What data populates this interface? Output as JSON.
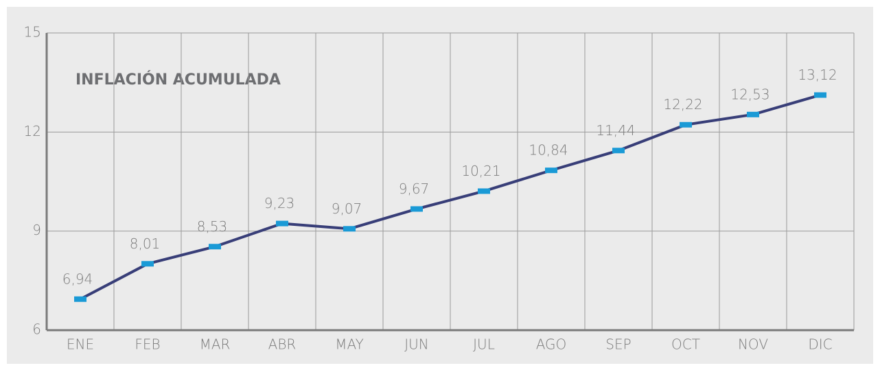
{
  "chart_data": {
    "type": "line",
    "title": "INFLACIÓN ACUMULADA",
    "categories": [
      "ENE",
      "FEB",
      "MAR",
      "ABR",
      "MAY",
      "JUN",
      "JUL",
      "AGO",
      "SEP",
      "OCT",
      "NOV",
      "DIC"
    ],
    "values": [
      6.94,
      8.01,
      8.53,
      9.23,
      9.07,
      9.67,
      10.21,
      10.84,
      11.44,
      12.22,
      12.53,
      13.12
    ],
    "value_labels": [
      "6,94",
      "8,01",
      "8,53",
      "9,23",
      "9,07",
      "9,67",
      "10,21",
      "10,84",
      "11,44",
      "12,22",
      "12,53",
      "13,12"
    ],
    "color": "#383e78",
    "marker_color": "#1a9ad6",
    "ylim": [
      6,
      15
    ],
    "yticks": [
      6,
      9,
      12,
      15
    ],
    "grid": true
  }
}
